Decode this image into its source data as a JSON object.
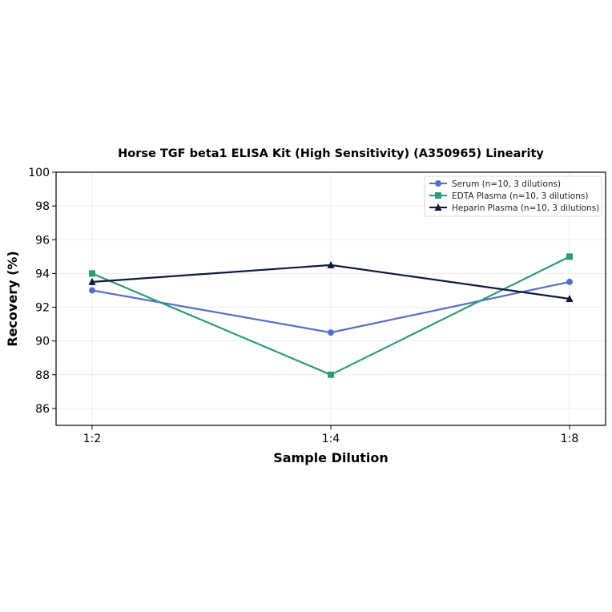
{
  "chart_data": {
    "type": "line",
    "title": "Horse TGF beta1 ELISA Kit (High Sensitivity) (A350965) Linearity",
    "xlabel": "Sample Dilution",
    "ylabel": "Recovery (%)",
    "categories": [
      "1:2",
      "1:4",
      "1:8"
    ],
    "ylim": [
      85,
      100
    ],
    "yticks": [
      86,
      88,
      90,
      92,
      94,
      96,
      98,
      100
    ],
    "grid": true,
    "legend_position": "top-right",
    "series": [
      {
        "name": "Serum (n=10, 3 dilutions)",
        "values": [
          93.0,
          90.5,
          93.5
        ],
        "color": "#5470c6",
        "marker": "circle"
      },
      {
        "name": "EDTA Plasma (n=10, 3 dilutions)",
        "values": [
          94.0,
          88.0,
          95.0
        ],
        "color": "#2e9a78",
        "marker": "square"
      },
      {
        "name": "Heparin Plasma (n=10, 3 dilutions)",
        "values": [
          93.5,
          94.5,
          92.5
        ],
        "color": "#0f1a3a",
        "marker": "triangle"
      }
    ]
  }
}
